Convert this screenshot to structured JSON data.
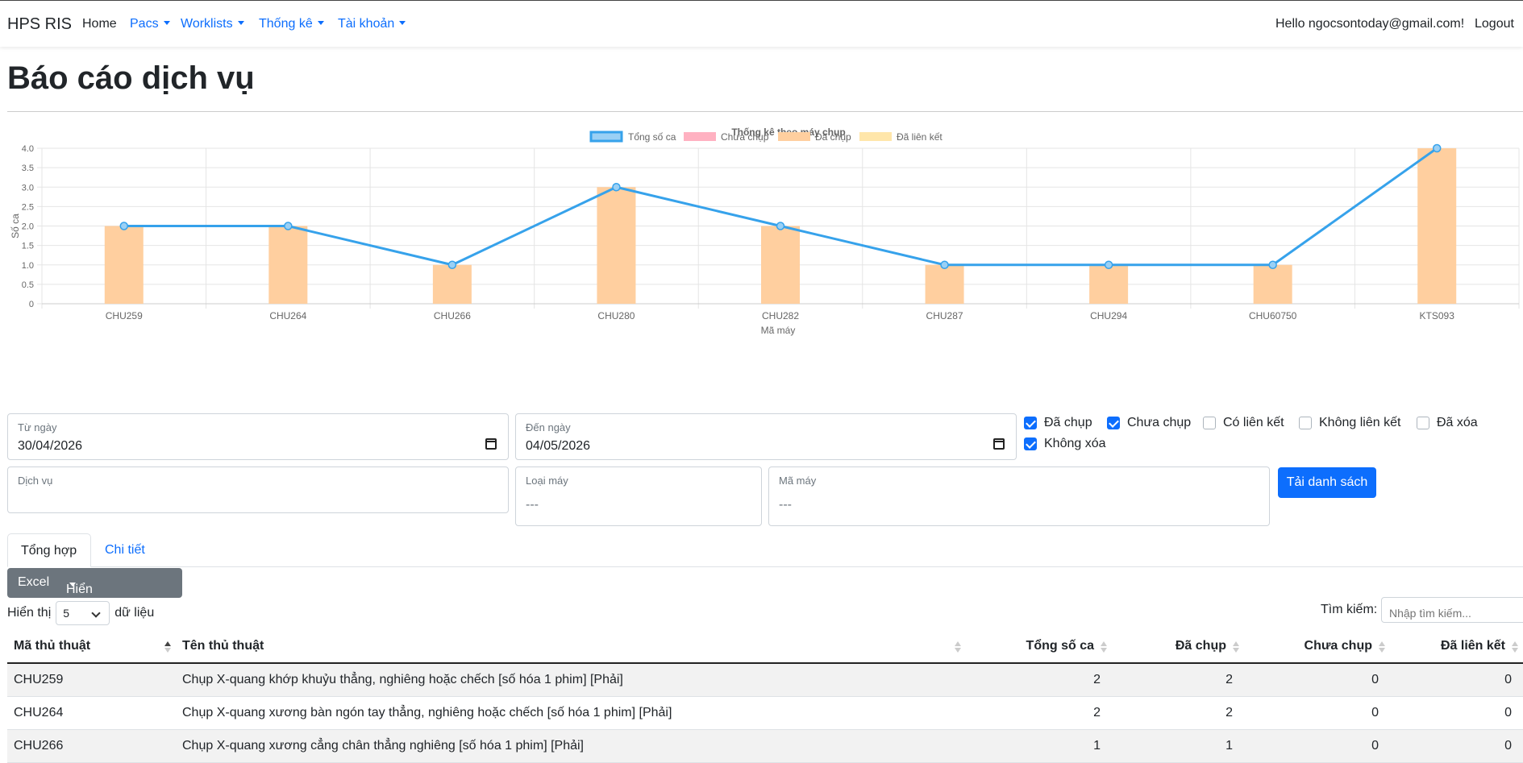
{
  "navbar": {
    "brand": "HPS RIS",
    "items": [
      {
        "label": "Home",
        "dropdown": false
      },
      {
        "label": "Pacs",
        "dropdown": true
      },
      {
        "label": "Worklists",
        "dropdown": true
      },
      {
        "label": "Thống kê",
        "dropdown": true
      },
      {
        "label": "Tài khoản",
        "dropdown": true
      }
    ],
    "greeting": "Hello ngocsontoday@gmail.com!",
    "logout": "Logout"
  },
  "page_title": "Báo cáo dịch vụ",
  "chart_data": {
    "type": "bar",
    "title": "Thống kê theo máy chụp",
    "xlabel": "Mã máy",
    "ylabel": "Số ca",
    "ylim": [
      0,
      4.0
    ],
    "y_ticks": [
      "4.0",
      "3.5",
      "3.0",
      "2.5",
      "2.0",
      "1.5",
      "1.0",
      "0.5",
      "0"
    ],
    "categories": [
      "CHU259",
      "CHU264",
      "CHU266",
      "CHU280",
      "CHU282",
      "CHU287",
      "CHU294",
      "CHU60750",
      "KTS093"
    ],
    "series": [
      {
        "name": "Tổng số ca",
        "kind": "line",
        "color": "#36a2eb",
        "values": [
          2,
          2,
          1,
          3,
          2,
          1,
          1,
          1,
          4
        ]
      },
      {
        "name": "Chưa chụp",
        "kind": "bar",
        "color": "#ffb1c1",
        "values": [
          0,
          0,
          0,
          0,
          0,
          0,
          0,
          0,
          0
        ]
      },
      {
        "name": "Đã chụp",
        "kind": "bar",
        "color": "#ffcf9f",
        "values": [
          2,
          2,
          1,
          3,
          2,
          1,
          1,
          1,
          4
        ]
      },
      {
        "name": "Đã liên kết",
        "kind": "bar",
        "color": "#ffe6aa",
        "values": [
          0,
          0,
          0,
          0,
          0,
          0,
          0,
          0,
          0
        ]
      }
    ],
    "legend_position": "top",
    "grid": true
  },
  "filters": {
    "from_date": {
      "label": "Từ ngày",
      "value": "30/04/2026"
    },
    "to_date": {
      "label": "Đến ngày",
      "value": "04/05/2026"
    },
    "service": {
      "label": "Dịch vụ",
      "value": ""
    },
    "machine_type": {
      "label": "Loại máy",
      "value": "---"
    },
    "machine_code": {
      "label": "Mã máy",
      "value": "---"
    },
    "checkboxes": [
      {
        "label": "Đã chụp",
        "checked": true
      },
      {
        "label": "Chưa chụp",
        "checked": true
      },
      {
        "label": "Có liên kết",
        "checked": false
      },
      {
        "label": "Không liên kết",
        "checked": false
      },
      {
        "label": "Đã xóa",
        "checked": false
      },
      {
        "label": "Không xóa",
        "checked": true
      }
    ],
    "load_button": "Tải danh sách"
  },
  "tabs": [
    {
      "label": "Tổng hợp",
      "active": true
    },
    {
      "label": "Chi tiết",
      "active": false
    }
  ],
  "toolbar": {
    "excel": "Excel",
    "columns": "Hiển thị theo cột"
  },
  "paging": {
    "show_prefix": "Hiển thị",
    "page_size": "5",
    "show_suffix": "dữ liệu"
  },
  "search": {
    "label": "Tìm kiếm:",
    "placeholder": "Nhập tìm kiếm..."
  },
  "table": {
    "columns": [
      "Mã thủ thuật",
      "Tên thủ thuật",
      "Tổng số ca",
      "Đã chụp",
      "Chưa chụp",
      "Đã liên kết"
    ],
    "rows": [
      [
        "CHU259",
        "Chụp X-quang khớp khuỷu thẳng, nghiêng hoặc chếch [số hóa 1 phim] [Phải]",
        "2",
        "2",
        "0",
        "0"
      ],
      [
        "CHU264",
        "Chụp X-quang xương bàn ngón tay thẳng, nghiêng hoặc chếch [số hóa 1 phim] [Phải]",
        "2",
        "2",
        "0",
        "0"
      ],
      [
        "CHU266",
        "Chụp X-quang xương cẳng chân thẳng nghiêng [số hóa 1 phim] [Phải]",
        "1",
        "1",
        "0",
        "0"
      ]
    ]
  }
}
